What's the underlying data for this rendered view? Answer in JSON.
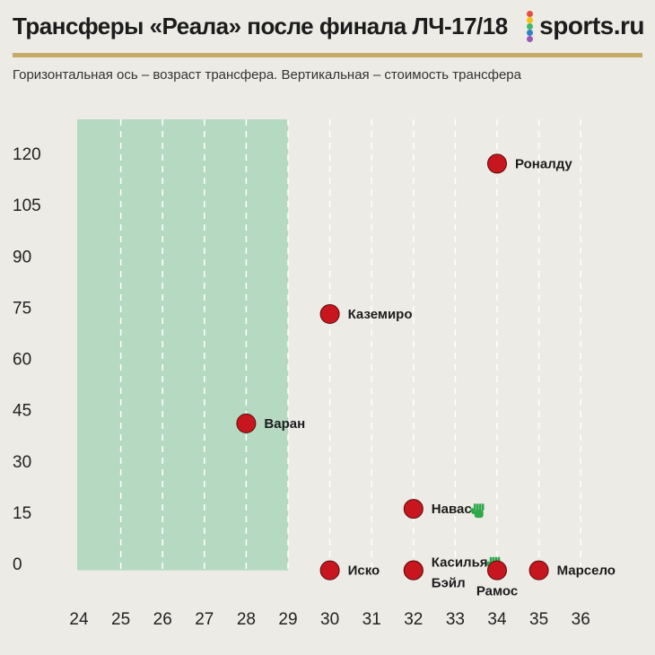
{
  "header": {
    "title": "Трансферы «Реала» после финала ЛЧ-17/18",
    "logo_text": "sports.ru",
    "logo_dot_colors": [
      "#e84c3d",
      "#f4c20d",
      "#3fb96b",
      "#2f80c8",
      "#9b59b6"
    ]
  },
  "subtitle": "Горизонтальная ось – возраст трансфера. Вертикальная – стоимость трансфера",
  "colors": {
    "point": "#c8161e",
    "highlight": "#b6d9c2",
    "rule": "#c4ad62",
    "glove": "#2ea84a"
  },
  "chart_data": {
    "type": "scatter",
    "x_categories": [
      "24",
      "25",
      "26",
      "27",
      "28",
      "29",
      "30",
      "31",
      "32",
      "33",
      "34",
      "35",
      "36"
    ],
    "y_ticks": [
      0,
      15,
      30,
      45,
      60,
      75,
      90,
      105,
      120
    ],
    "ylim": [
      -2,
      130
    ],
    "highlight_band": {
      "from": "24",
      "to": "29"
    },
    "grid": "vertical dashed",
    "points": [
      {
        "label": "Роналду",
        "x": "34",
        "y": 117,
        "label_side": "right"
      },
      {
        "label": "Каземиро",
        "x": "30",
        "y": 73,
        "label_side": "right"
      },
      {
        "label": "Варан",
        "x": "28",
        "y": 41,
        "label_side": "right"
      },
      {
        "label": "Навас",
        "x": "32",
        "y": 16,
        "label_side": "right",
        "icon": "goalkeeper-glove-icon"
      },
      {
        "label": "Иско",
        "x": "30",
        "y": -2,
        "label_side": "right"
      },
      {
        "label": "Касилья",
        "x": "32",
        "y": -2,
        "label_side": "right-top",
        "icon": "goalkeeper-glove-icon"
      },
      {
        "label": "Бэйл",
        "x": "32",
        "y": -2,
        "label_side": "right-bottom"
      },
      {
        "label": "Рамос",
        "x": "34",
        "y": -2,
        "label_side": "below"
      },
      {
        "label": "Марсело",
        "x": "35",
        "y": -2,
        "label_side": "right"
      }
    ]
  }
}
